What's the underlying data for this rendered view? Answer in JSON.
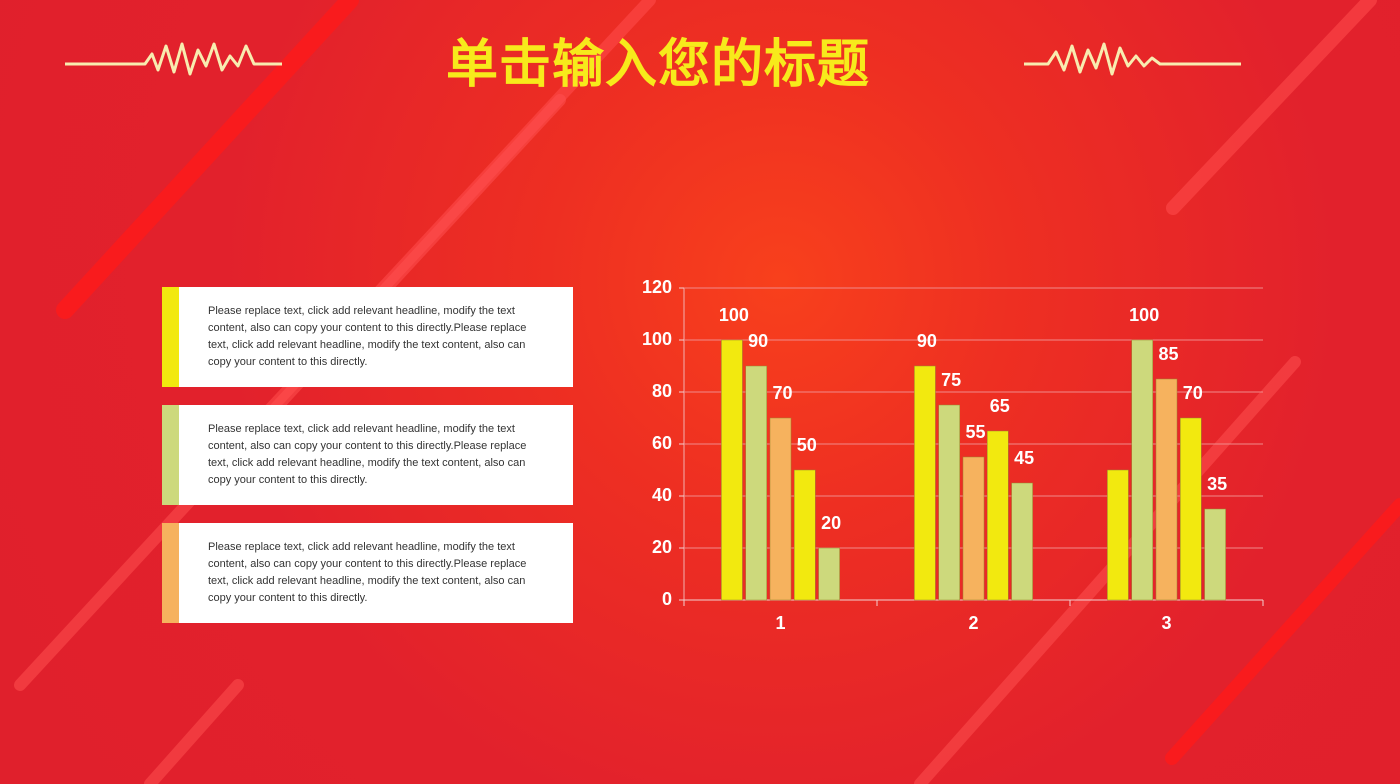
{
  "header": {
    "title": "单击输入您的标题"
  },
  "cards": [
    "Please replace text, click add relevant headline, modify the text content, also can copy your content to this directly.Please replace text, click add relevant headline, modify the text content, also can copy your content to this directly.",
    "Please replace text, click add relevant headline, modify the text content, also can copy your content to this directly.Please replace text, click add relevant headline, modify the text content, also can copy your content to this directly.",
    "Please replace text, click add relevant headline, modify the text content, also can copy your content to this directly.Please replace text, click add relevant headline, modify the text content, also can copy your content to this directly."
  ],
  "chart_data": {
    "type": "bar",
    "categories": [
      "1",
      "2",
      "3"
    ],
    "series": [
      {
        "color": "#f2e90f",
        "values": [
          100,
          90,
          50
        ],
        "value_labels": [
          "100",
          "90",
          null
        ]
      },
      {
        "color": "#cdd97c",
        "values": [
          90,
          75,
          100
        ]
      },
      {
        "color": "#f6b25e",
        "values": [
          70,
          55,
          85
        ]
      },
      {
        "color": "#f2e90f",
        "values": [
          50,
          65,
          70
        ]
      },
      {
        "color": "#cdd97c",
        "values": [
          20,
          45,
          35
        ]
      }
    ],
    "ylim": [
      0,
      120
    ],
    "yticks": [
      0,
      20,
      40,
      60,
      80,
      100,
      120
    ],
    "grid": true
  }
}
